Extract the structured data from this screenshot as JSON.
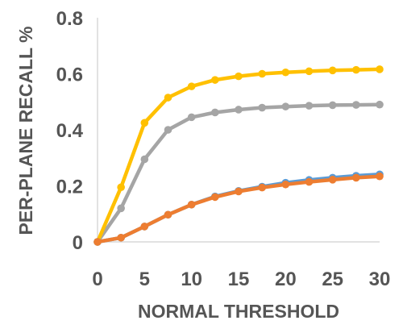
{
  "chart_data": {
    "type": "line",
    "xlabel": "NORMAL THRESHOLD",
    "ylabel": "PER-PLANE RECALL %",
    "xlim": [
      0,
      30
    ],
    "ylim": [
      0,
      0.8
    ],
    "x_ticks": [
      0,
      5,
      10,
      15,
      20,
      25,
      30
    ],
    "x_tick_labels": [
      "0",
      "5",
      "10",
      "15",
      "20",
      "25",
      "30"
    ],
    "y_ticks": [
      0,
      0.2,
      0.4,
      0.6,
      0.8
    ],
    "y_tick_labels": [
      "0",
      "0.2",
      "0.4",
      "0.6",
      "0.8"
    ],
    "grid": false,
    "legend": "none",
    "x": [
      0,
      2.5,
      5,
      7.5,
      10,
      12.5,
      15,
      17.5,
      20,
      22.5,
      25,
      27.5,
      30
    ],
    "series": [
      {
        "color": "#FFC000",
        "values": [
          0,
          0.195,
          0.425,
          0.515,
          0.555,
          0.578,
          0.591,
          0.6,
          0.605,
          0.609,
          0.612,
          0.614,
          0.616
        ]
      },
      {
        "color": "#A5A5A5",
        "values": [
          0,
          0.12,
          0.295,
          0.4,
          0.445,
          0.462,
          0.472,
          0.479,
          0.483,
          0.486,
          0.488,
          0.489,
          0.49
        ]
      },
      {
        "color": "#5B9BD5",
        "values": [
          0,
          0.015,
          0.055,
          0.097,
          0.133,
          0.162,
          0.182,
          0.197,
          0.211,
          0.221,
          0.229,
          0.236,
          0.241
        ]
      },
      {
        "color": "#ED7D31",
        "values": [
          0,
          0.015,
          0.055,
          0.097,
          0.133,
          0.16,
          0.18,
          0.194,
          0.205,
          0.214,
          0.222,
          0.229,
          0.234
        ]
      }
    ]
  }
}
